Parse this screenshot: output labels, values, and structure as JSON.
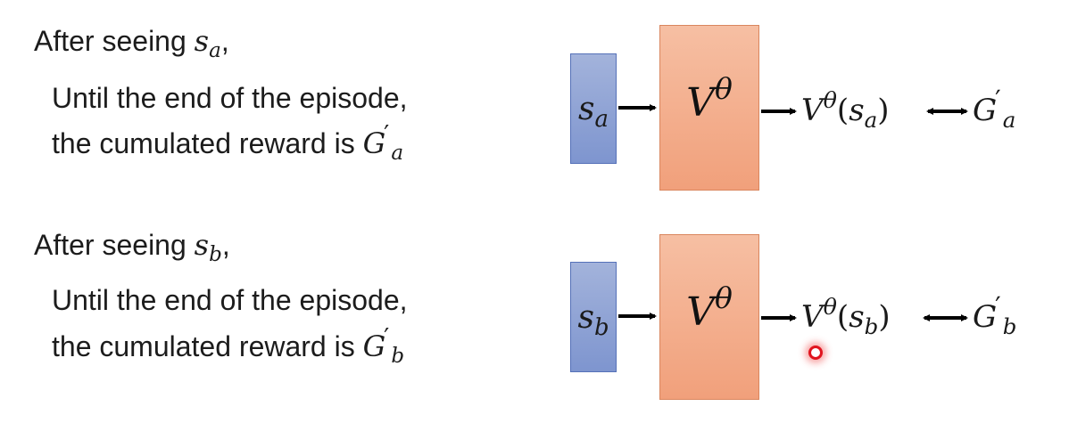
{
  "rows": [
    {
      "line1": "After seeing ",
      "state_symbol": "s",
      "state_sub": "a",
      "comma": ",",
      "line2": "Until the end of the episode,",
      "line3": "the cumulated reward is ",
      "reward_symbol": "G",
      "reward_prime": "′",
      "reward_sub": "a",
      "critic_symbol": "V",
      "critic_sup": "θ",
      "output_open": "(",
      "output_close": ")"
    },
    {
      "line1": "After seeing ",
      "state_symbol": "s",
      "state_sub": "b",
      "comma": ",",
      "line2": "Until the end of the episode,",
      "line3": "the cumulated reward is ",
      "reward_symbol": "G",
      "reward_prime": "′",
      "reward_sub": "b",
      "critic_symbol": "V",
      "critic_sup": "θ",
      "output_open": "(",
      "output_close": ")"
    }
  ],
  "colors": {
    "input_box": "#8fa3d6",
    "critic_box": "#f3ac8a",
    "cursor": "#e0141e"
  },
  "icons": {
    "cursor": "red-pointer-dot"
  }
}
